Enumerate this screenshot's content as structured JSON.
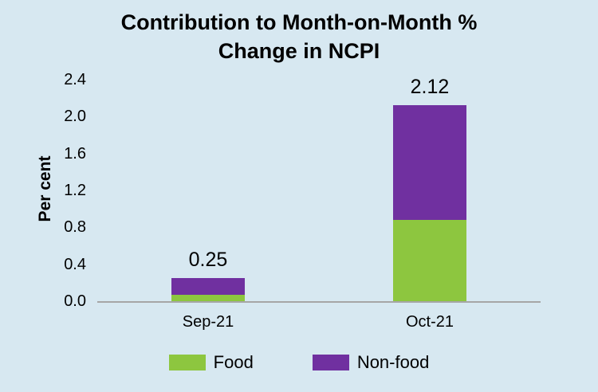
{
  "chart_data": {
    "type": "bar",
    "stacked": true,
    "title": "Contribution to Month-on-Month % Change in NCPI",
    "title_lines": [
      "Contribution to Month-on-Month %",
      "Change in NCPI"
    ],
    "ylabel": "Per cent",
    "categories": [
      "Sep-21",
      "Oct-21"
    ],
    "series": [
      {
        "name": "Food",
        "color": "#8dc63f",
        "values": [
          0.07,
          0.88
        ]
      },
      {
        "name": "Non-food",
        "color": "#7030a0",
        "values": [
          0.18,
          1.24
        ]
      }
    ],
    "totals": [
      0.25,
      2.12
    ],
    "totals_labels": [
      "0.25",
      "2.12"
    ],
    "ylim": [
      0,
      2.4
    ],
    "yticks": [
      "0.0",
      "0.4",
      "0.8",
      "1.2",
      "1.6",
      "2.0",
      "2.4"
    ],
    "grid": false,
    "legend_position": "bottom",
    "background_color": "#d7e8f1",
    "axis_line_color": "#a6a6a6"
  }
}
